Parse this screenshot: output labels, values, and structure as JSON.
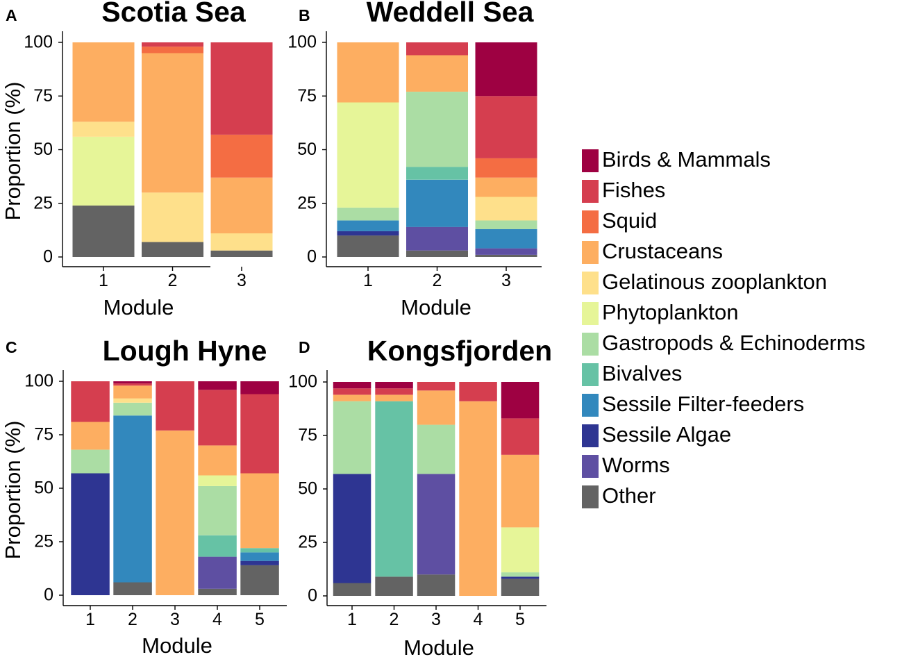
{
  "colors": {
    "Birds & Mammals": "#9e0142",
    "Fishes": "#d53e4f",
    "Squid": "#f46d43",
    "Crustaceans": "#fdae61",
    "Gelatinous zooplankton": "#fee08b",
    "Phytoplankton": "#e6f598",
    "Gastropods & Echinoderms": "#abdda4",
    "Bivalves": "#66c2a5",
    "Sessile Filter-feeders": "#3288bd",
    "Sessile Algae": "#2e3592",
    "Worms": "#5e4fa2",
    "Other": "#636363"
  },
  "legend": [
    "Birds & Mammals",
    "Fishes",
    "Squid",
    "Crustaceans",
    "Gelatinous zooplankton",
    "Phytoplankton",
    "Gastropods & Echinoderms",
    "Bivalves",
    "Sessile Filter-feeders",
    "Sessile Algae",
    "Worms",
    "Other"
  ],
  "chart_data": [
    {
      "type": "bar",
      "stacked": true,
      "panel_letter": "A",
      "title": "Scotia Sea",
      "xlabel": "Module",
      "ylabel": "Proportion (%)",
      "ylim": [
        0,
        100
      ],
      "yticks": [
        "0",
        "25",
        "50",
        "75",
        "100"
      ],
      "categories": [
        "1",
        "2",
        "3"
      ],
      "series": [
        {
          "name": "Other",
          "values": [
            24,
            7,
            3
          ]
        },
        {
          "name": "Worms",
          "values": [
            0,
            0,
            0
          ]
        },
        {
          "name": "Sessile Algae",
          "values": [
            0,
            0,
            0
          ]
        },
        {
          "name": "Sessile Filter-feeders",
          "values": [
            0,
            0,
            0
          ]
        },
        {
          "name": "Bivalves",
          "values": [
            0,
            0,
            0
          ]
        },
        {
          "name": "Gastropods & Echinoderms",
          "values": [
            0,
            0,
            0
          ]
        },
        {
          "name": "Phytoplankton",
          "values": [
            32,
            0,
            0
          ]
        },
        {
          "name": "Gelatinous zooplankton",
          "values": [
            7,
            23,
            8
          ]
        },
        {
          "name": "Crustaceans",
          "values": [
            37,
            65,
            26
          ]
        },
        {
          "name": "Squid",
          "values": [
            0,
            3,
            20
          ]
        },
        {
          "name": "Fishes",
          "values": [
            0,
            2,
            43
          ]
        },
        {
          "name": "Birds & Mammals",
          "values": [
            0,
            0,
            0
          ]
        }
      ]
    },
    {
      "type": "bar",
      "stacked": true,
      "panel_letter": "B",
      "title": "Weddell Sea",
      "xlabel": "Module",
      "ylabel": "",
      "ylim": [
        0,
        100
      ],
      "yticks": [
        "0",
        "25",
        "50",
        "75",
        "100"
      ],
      "categories": [
        "1",
        "2",
        "3"
      ],
      "series": [
        {
          "name": "Other",
          "values": [
            10,
            3,
            1
          ]
        },
        {
          "name": "Worms",
          "values": [
            0,
            11,
            3
          ]
        },
        {
          "name": "Sessile Algae",
          "values": [
            2,
            0,
            0
          ]
        },
        {
          "name": "Sessile Filter-feeders",
          "values": [
            5,
            22,
            9
          ]
        },
        {
          "name": "Bivalves",
          "values": [
            0,
            6,
            0
          ]
        },
        {
          "name": "Gastropods & Echinoderms",
          "values": [
            6,
            35,
            4
          ]
        },
        {
          "name": "Phytoplankton",
          "values": [
            49,
            0,
            0
          ]
        },
        {
          "name": "Gelatinous zooplankton",
          "values": [
            0,
            0,
            11
          ]
        },
        {
          "name": "Crustaceans",
          "values": [
            28,
            17,
            9
          ]
        },
        {
          "name": "Squid",
          "values": [
            0,
            0,
            9
          ]
        },
        {
          "name": "Fishes",
          "values": [
            0,
            6,
            29
          ]
        },
        {
          "name": "Birds & Mammals",
          "values": [
            0,
            0,
            25
          ]
        }
      ]
    },
    {
      "type": "bar",
      "stacked": true,
      "panel_letter": "C",
      "title": "Lough Hyne",
      "xlabel": "Module",
      "ylabel": "Proportion (%)",
      "ylim": [
        0,
        100
      ],
      "yticks": [
        "0",
        "25",
        "50",
        "75",
        "100"
      ],
      "categories": [
        "1",
        "2",
        "3",
        "4",
        "5"
      ],
      "series": [
        {
          "name": "Other",
          "values": [
            0,
            6,
            0,
            3,
            14
          ]
        },
        {
          "name": "Worms",
          "values": [
            0,
            0,
            0,
            15,
            0
          ]
        },
        {
          "name": "Sessile Algae",
          "values": [
            57,
            0,
            0,
            0,
            2
          ]
        },
        {
          "name": "Sessile Filter-feeders",
          "values": [
            0,
            78,
            0,
            0,
            4
          ]
        },
        {
          "name": "Bivalves",
          "values": [
            0,
            0,
            0,
            10,
            2
          ]
        },
        {
          "name": "Gastropods & Echinoderms",
          "values": [
            11,
            6,
            0,
            23,
            0
          ]
        },
        {
          "name": "Phytoplankton",
          "values": [
            0,
            0,
            0,
            5,
            0
          ]
        },
        {
          "name": "Gelatinous zooplankton",
          "values": [
            0,
            2,
            0,
            0,
            0
          ]
        },
        {
          "name": "Crustaceans",
          "values": [
            13,
            6,
            77,
            14,
            35
          ]
        },
        {
          "name": "Squid",
          "values": [
            0,
            0,
            0,
            0,
            0
          ]
        },
        {
          "name": "Fishes",
          "values": [
            19,
            1,
            23,
            26,
            37
          ]
        },
        {
          "name": "Birds & Mammals",
          "values": [
            0,
            1,
            0,
            4,
            6
          ]
        }
      ]
    },
    {
      "type": "bar",
      "stacked": true,
      "panel_letter": "D",
      "title": "Kongsfjorden",
      "xlabel": "Module",
      "ylabel": "",
      "ylim": [
        0,
        100
      ],
      "yticks": [
        "0",
        "25",
        "50",
        "75",
        "100"
      ],
      "categories": [
        "1",
        "2",
        "3",
        "4",
        "5"
      ],
      "series": [
        {
          "name": "Other",
          "values": [
            6,
            9,
            10,
            0,
            8
          ]
        },
        {
          "name": "Worms",
          "values": [
            0,
            0,
            47,
            0,
            0
          ]
        },
        {
          "name": "Sessile Algae",
          "values": [
            51,
            0,
            0,
            0,
            1
          ]
        },
        {
          "name": "Sessile Filter-feeders",
          "values": [
            0,
            0,
            0,
            0,
            0
          ]
        },
        {
          "name": "Bivalves",
          "values": [
            0,
            82,
            0,
            0,
            0
          ]
        },
        {
          "name": "Gastropods & Echinoderms",
          "values": [
            34,
            0,
            23,
            0,
            2
          ]
        },
        {
          "name": "Phytoplankton",
          "values": [
            0,
            0,
            0,
            0,
            21
          ]
        },
        {
          "name": "Gelatinous zooplankton",
          "values": [
            0,
            0,
            0,
            0,
            0
          ]
        },
        {
          "name": "Crustaceans",
          "values": [
            3,
            3,
            16,
            91,
            34
          ]
        },
        {
          "name": "Squid",
          "values": [
            0,
            0,
            0,
            0,
            0
          ]
        },
        {
          "name": "Fishes",
          "values": [
            3,
            3,
            4,
            9,
            17
          ]
        },
        {
          "name": "Birds & Mammals",
          "values": [
            3,
            3,
            0,
            0,
            17
          ]
        }
      ]
    }
  ]
}
